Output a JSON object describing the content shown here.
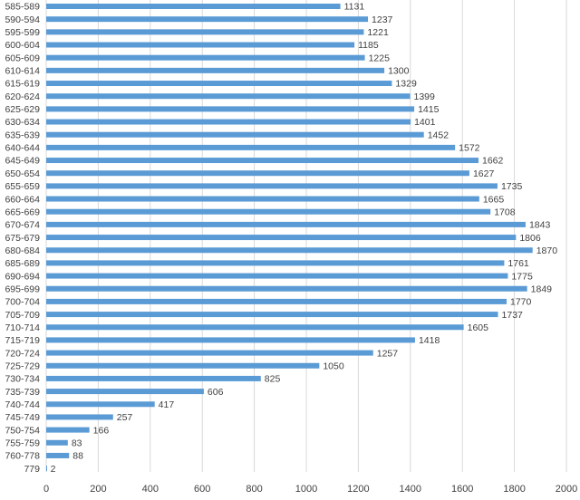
{
  "chart_data": {
    "type": "bar",
    "orientation": "horizontal",
    "title": "",
    "xlabel": "",
    "ylabel": "",
    "categories": [
      "585-589",
      "590-594",
      "595-599",
      "600-604",
      "605-609",
      "610-614",
      "615-619",
      "620-624",
      "625-629",
      "630-634",
      "635-639",
      "640-644",
      "645-649",
      "650-654",
      "655-659",
      "660-664",
      "665-669",
      "670-674",
      "675-679",
      "680-684",
      "685-689",
      "690-694",
      "695-699",
      "700-704",
      "705-709",
      "710-714",
      "715-719",
      "720-724",
      "725-729",
      "730-734",
      "735-739",
      "740-744",
      "745-749",
      "750-754",
      "755-759",
      "760-778",
      "779"
    ],
    "values": [
      1131,
      1237,
      1221,
      1185,
      1225,
      1300,
      1329,
      1399,
      1415,
      1401,
      1452,
      1572,
      1662,
      1627,
      1735,
      1665,
      1708,
      1843,
      1806,
      1870,
      1761,
      1775,
      1849,
      1770,
      1737,
      1605,
      1418,
      1257,
      1050,
      825,
      606,
      417,
      257,
      166,
      83,
      88,
      2
    ],
    "xlim": [
      0,
      2000
    ],
    "xticks": [
      0,
      200,
      400,
      600,
      800,
      1000,
      1200,
      1400,
      1600,
      1800,
      2000
    ],
    "grid": "vertical",
    "legend": "none",
    "bar_color": "#5B9BD5",
    "grid_color": "#D9D9D9",
    "text_color": "#404040"
  }
}
